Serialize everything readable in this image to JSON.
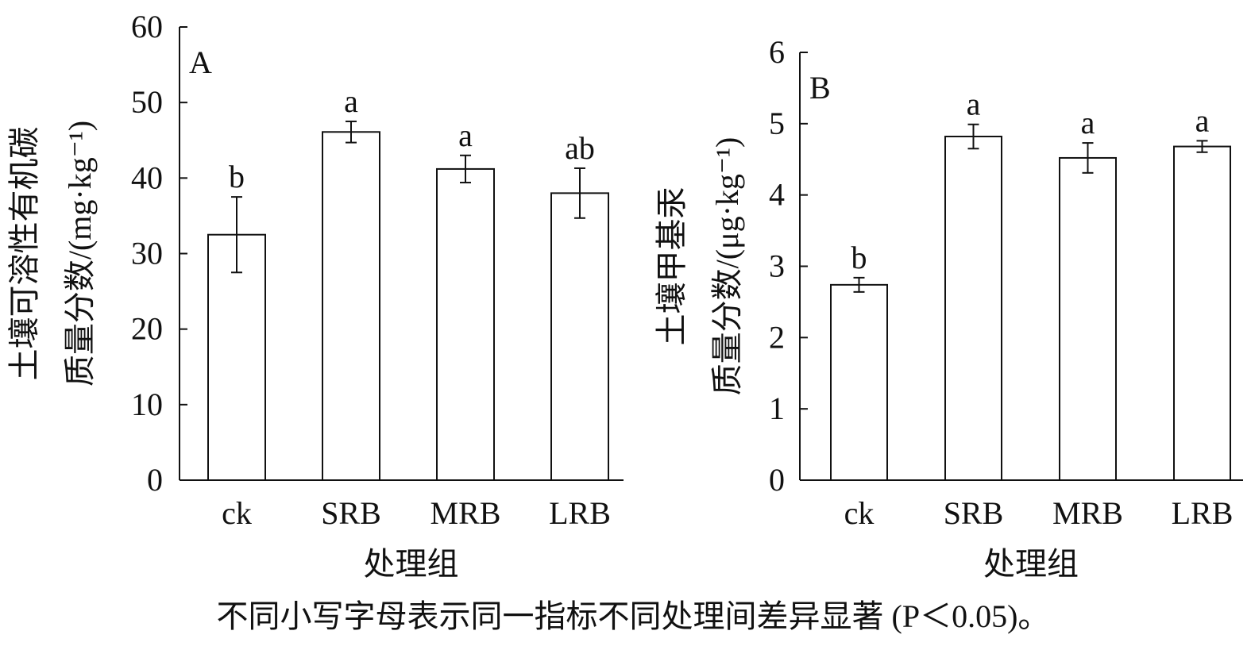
{
  "chart_data": [
    {
      "type": "bar",
      "panel_label": "A",
      "categories": [
        "ck",
        "SRB",
        "MRB",
        "LRB"
      ],
      "values": [
        32.5,
        46.1,
        41.2,
        38.0
      ],
      "errors": [
        5.0,
        1.4,
        1.8,
        3.3
      ],
      "significance": [
        "b",
        "a",
        "a",
        "ab"
      ],
      "ylabel_line1": "土壤可溶性有机碳",
      "ylabel_line2": "质量分数/(mg·kg⁻¹)",
      "xlabel": "处理组",
      "ylim": [
        0,
        60
      ],
      "yticks": [
        0,
        10,
        20,
        30,
        40,
        50,
        60
      ],
      "grid": false
    },
    {
      "type": "bar",
      "panel_label": "B",
      "categories": [
        "ck",
        "SRB",
        "MRB",
        "LRB"
      ],
      "values": [
        2.74,
        4.82,
        4.52,
        4.68
      ],
      "errors": [
        0.1,
        0.17,
        0.21,
        0.08
      ],
      "significance": [
        "b",
        "a",
        "a",
        "a"
      ],
      "ylabel_line1": "土壤甲基汞",
      "ylabel_line2": "质量分数/(μg·kg⁻¹)",
      "xlabel": "处理组",
      "ylim": [
        0,
        6
      ],
      "yticks": [
        0,
        1,
        2,
        3,
        4,
        5,
        6
      ],
      "grid": false
    }
  ],
  "caption": "不同小写字母表示同一指标不同处理间差异显著 (P＜0.05)。"
}
